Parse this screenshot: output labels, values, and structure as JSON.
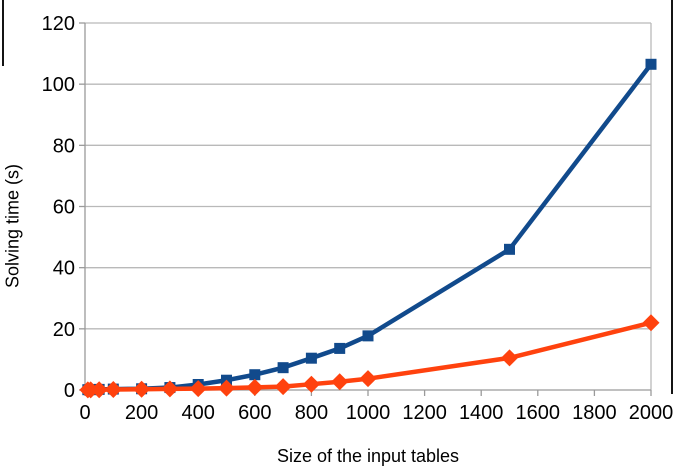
{
  "chart_data": {
    "type": "line",
    "title": "",
    "xlabel": "Size of the input tables",
    "ylabel": "Solving time (s)",
    "xlim": [
      0,
      2000
    ],
    "ylim": [
      0,
      120
    ],
    "x_ticks": [
      0,
      200,
      400,
      600,
      800,
      1000,
      1200,
      1400,
      1600,
      1800,
      2000
    ],
    "y_ticks": [
      0,
      20,
      40,
      60,
      80,
      100,
      120
    ],
    "grid": "horizontal-only",
    "legend": "none",
    "x": [
      10,
      20,
      50,
      100,
      200,
      300,
      400,
      500,
      600,
      700,
      800,
      900,
      1000,
      1500,
      2000
    ],
    "series": [
      {
        "name": "blue-squares-series",
        "marker": "square",
        "color": "#114a8c",
        "values": [
          0.1,
          0.1,
          0.2,
          0.3,
          0.4,
          0.8,
          1.8,
          3.2,
          5.0,
          7.3,
          10.4,
          13.6,
          17.7,
          46,
          106.5
        ]
      },
      {
        "name": "orange-diamonds-series",
        "marker": "diamond",
        "color": "#ff420e",
        "values": [
          0.05,
          0.05,
          0.1,
          0.15,
          0.25,
          0.35,
          0.45,
          0.6,
          0.85,
          1.1,
          1.9,
          2.7,
          3.7,
          10.5,
          22
        ]
      }
    ],
    "colors": {
      "gridline": "#b9b9b9",
      "axis": "#9a9a9a",
      "text": "#000000",
      "frame": "#141414"
    }
  }
}
